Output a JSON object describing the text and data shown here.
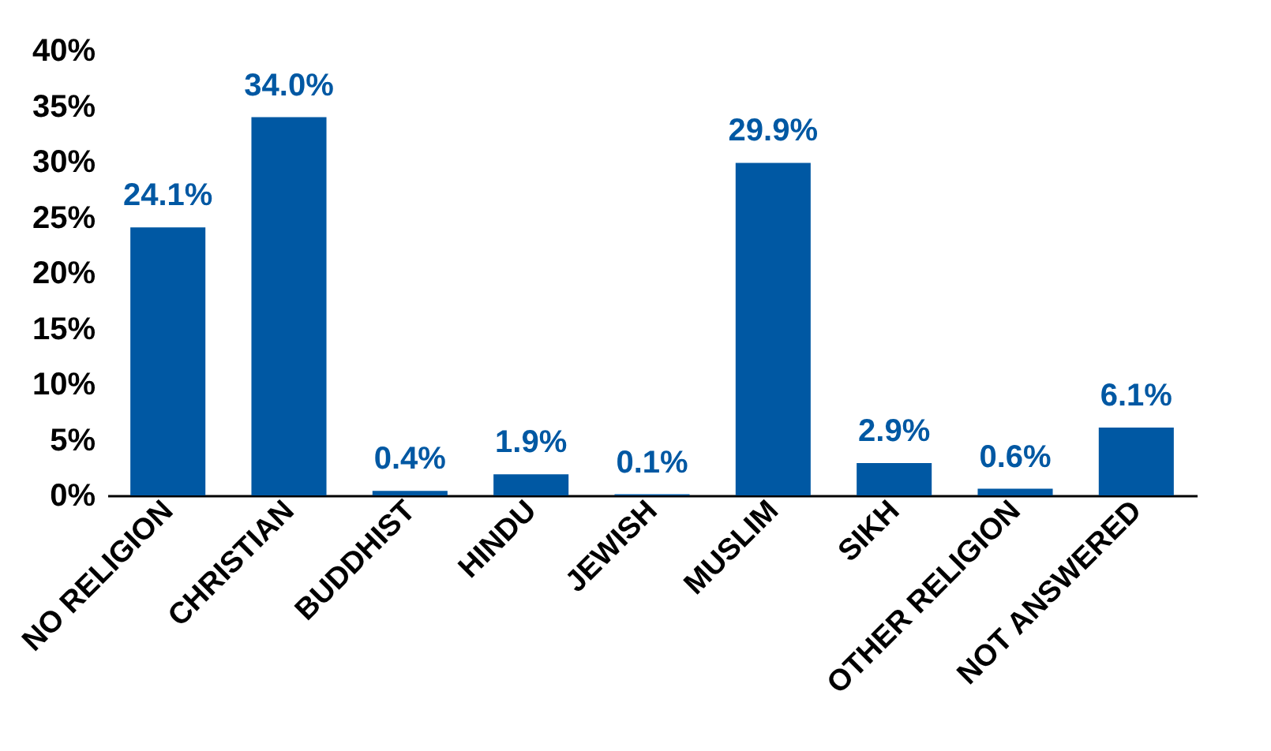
{
  "chart_data": {
    "type": "bar",
    "categories": [
      "NO RELIGION",
      "CHRISTIAN",
      "BUDDHIST",
      "HINDU",
      "JEWISH",
      "MUSLIM",
      "SIKH",
      "OTHER RELIGION",
      "NOT ANSWERED"
    ],
    "values": [
      24.1,
      34.0,
      0.4,
      1.9,
      0.1,
      29.9,
      2.9,
      0.6,
      6.1
    ],
    "value_labels": [
      "24.1%",
      "34.0%",
      "0.4%",
      "1.9%",
      "0.1%",
      "29.9%",
      "2.9%",
      "0.6%",
      "6.1%"
    ],
    "color": "#0058a3",
    "ylim": [
      0,
      40
    ],
    "yticks": [
      {
        "value": 0,
        "label": "0%"
      },
      {
        "value": 5,
        "label": "5%"
      },
      {
        "value": 10,
        "label": "10%"
      },
      {
        "value": 15,
        "label": "15%"
      },
      {
        "value": 20,
        "label": "20%"
      },
      {
        "value": 25,
        "label": "25%"
      },
      {
        "value": 30,
        "label": "30%"
      },
      {
        "value": 35,
        "label": "35%"
      },
      {
        "value": 40,
        "label": "40%"
      }
    ],
    "grid": false,
    "legend": false
  }
}
